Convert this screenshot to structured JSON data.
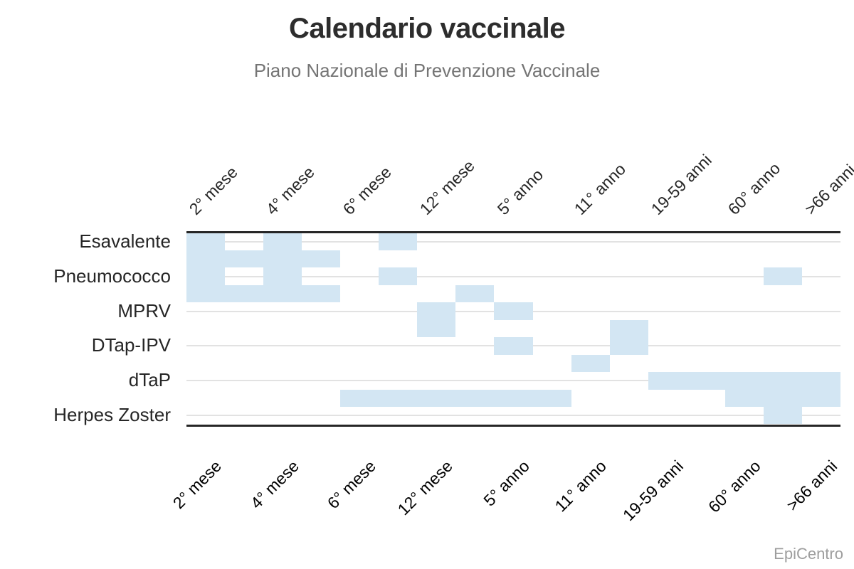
{
  "header": {
    "title": "Calendario vaccinale",
    "subtitle": "Piano Nazionale di Prevenzione Vaccinale"
  },
  "footer": {
    "credit": "EpiCentro"
  },
  "colors": {
    "cell_fill": "#d3e6f3",
    "grid_line": "#e2e2e2",
    "axis_line": "#262626",
    "title_text": "#2d2d2d",
    "subtitle_text": "#757575",
    "label_text": "#262626",
    "credit_text": "#9e9e9e"
  },
  "chart_data": {
    "type": "heatmap",
    "title": "Calendario vaccinale",
    "subtitle": "Piano Nazionale di Prevenzione Vaccinale",
    "columns": [
      "2° mese",
      "4° mese",
      "6° mese",
      "12° mese",
      "5° anno",
      "11° anno",
      "19-59 anni",
      "60° anno",
      ">66 anni"
    ],
    "rows": [
      "Esavalente",
      "Pneumococco",
      "MPRV",
      "DTap-IPV",
      "dTaP",
      "Herpes Zoster"
    ],
    "axis_labels_shown": [
      "top",
      "bottom"
    ],
    "legend": "none",
    "grid": {
      "half_cols": 17,
      "half_rows": 11,
      "note": "Cells are addressed on a half-step grid: each labeled column = 2 half-cols (label centered on odd half-col), each vaccine row = 2 half-rows (row gridline centered on odd half-row)."
    },
    "cells": [
      {
        "sc": [
          0,
          1
        ],
        "hr": [
          0,
          4
        ],
        "rows": [
          "Esavalente",
          "Pneumococco"
        ],
        "pos": "2° mese"
      },
      {
        "sc": [
          2,
          3
        ],
        "hr": [
          0,
          4
        ],
        "rows": [
          "Esavalente",
          "Pneumococco"
        ],
        "pos": "4° mese"
      },
      {
        "sc": [
          0,
          4
        ],
        "hr": [
          1,
          2
        ],
        "rows": [
          "Esavalente"
        ],
        "pos": "banda 2°-6° mese (metà inferiore riga)"
      },
      {
        "sc": [
          0,
          4
        ],
        "hr": [
          3,
          4
        ],
        "rows": [
          "Pneumococco"
        ],
        "pos": "banda 2°-6° mese (metà inferiore riga)"
      },
      {
        "sc": [
          5,
          6
        ],
        "hr": [
          0,
          1
        ],
        "rows": [
          "Esavalente"
        ],
        "pos": "tra 6° e 12° mese"
      },
      {
        "sc": [
          5,
          6
        ],
        "hr": [
          2,
          3
        ],
        "rows": [
          "Pneumococco"
        ],
        "pos": "tra 6° e 12° mese"
      },
      {
        "sc": [
          6,
          7
        ],
        "hr": [
          4,
          6
        ],
        "rows": [
          "MPRV"
        ],
        "pos": "12° mese"
      },
      {
        "sc": [
          7,
          8
        ],
        "hr": [
          3,
          4
        ],
        "rows": [
          "Pneumococco",
          "MPRV"
        ],
        "pos": "tra 12° mese e 5° anno"
      },
      {
        "sc": [
          8,
          9
        ],
        "hr": [
          4,
          5
        ],
        "rows": [
          "MPRV"
        ],
        "pos": "5° anno"
      },
      {
        "sc": [
          8,
          9
        ],
        "hr": [
          6,
          7
        ],
        "rows": [
          "DTap-IPV"
        ],
        "pos": "5° anno"
      },
      {
        "sc": [
          11,
          12
        ],
        "hr": [
          5,
          7
        ],
        "rows": [
          "DTap-IPV"
        ],
        "pos": "tra 11° anno e 19-59 anni"
      },
      {
        "sc": [
          10,
          11
        ],
        "hr": [
          7,
          8
        ],
        "rows": [
          "DTap-IPV",
          "dTaP"
        ],
        "pos": "11° anno"
      },
      {
        "sc": [
          12,
          17
        ],
        "hr": [
          8,
          9
        ],
        "rows": [
          "dTaP"
        ],
        "pos": "da 19-59 anni a >66 anni"
      },
      {
        "sc": [
          14,
          17
        ],
        "hr": [
          9,
          10
        ],
        "rows": [
          "dTaP",
          "Herpes Zoster"
        ],
        "pos": "da 60° anno a >66 anni"
      },
      {
        "sc": [
          4,
          10
        ],
        "hr": [
          9,
          10
        ],
        "rows": [
          "dTaP",
          "Herpes Zoster"
        ],
        "pos": "banda da 6° mese a oltre 5° anno"
      },
      {
        "sc": [
          15,
          16
        ],
        "hr": [
          10,
          11
        ],
        "rows": [
          "Herpes Zoster"
        ],
        "pos": "tra 60° anno e >66 anni"
      },
      {
        "sc": [
          15,
          16
        ],
        "hr": [
          2,
          3
        ],
        "rows": [
          "Pneumococco"
        ],
        "pos": "tra 60° anno e >66 anni"
      }
    ]
  }
}
